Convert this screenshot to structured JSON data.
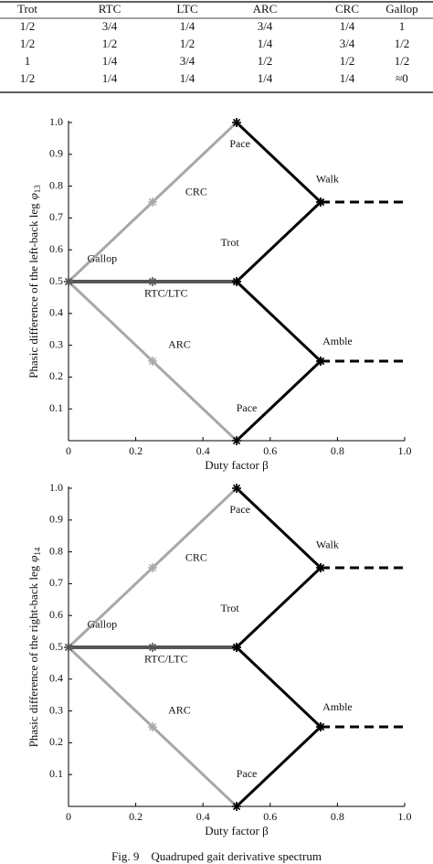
{
  "table": {
    "header": [
      "Trot",
      "RTC",
      "LTC",
      "ARC",
      "CRC",
      "Gallop"
    ],
    "rows": [
      [
        "1/2",
        "3/4",
        "1/4",
        "3/4",
        "1/4",
        "1"
      ],
      [
        "1/2",
        "1/2",
        "1/2",
        "1/4",
        "3/4",
        "1/2"
      ],
      [
        "1",
        "1/4",
        "3/4",
        "1/2",
        "1/2",
        "1/2"
      ],
      [
        "1/2",
        "1/4",
        "1/4",
        "1/4",
        "1/4",
        "≈0"
      ]
    ]
  },
  "chart_data": [
    {
      "type": "line",
      "xlabel": "Duty factor β",
      "ylabel": "Phasic difference of the left-back leg",
      "ylabel_symbol": "φ",
      "ylabel_subscript": "13",
      "xlim": [
        0,
        1
      ],
      "ylim": [
        0,
        1
      ],
      "xticks": [
        0,
        0.2,
        0.4,
        0.6,
        0.8,
        {
          "value": 1,
          "label": "1.0"
        }
      ],
      "yticks": [
        0.1,
        0.2,
        0.3,
        0.4,
        0.5,
        0.6,
        0.7,
        0.8,
        0.9,
        {
          "value": 1,
          "label": "1.0"
        }
      ],
      "series": [
        {
          "color": "#a8a8a8",
          "style": "solid",
          "markers": true,
          "x": [
            0,
            0.25,
            0.5
          ],
          "values": [
            0.5,
            0.75,
            1
          ]
        },
        {
          "color": "#a8a8a8",
          "style": "solid",
          "markers": true,
          "x": [
            0,
            0.25,
            0.5
          ],
          "values": [
            0.5,
            0.25,
            0
          ]
        },
        {
          "color": "#555555",
          "style": "thick",
          "markers": true,
          "x": [
            0,
            0.25,
            0.5
          ],
          "values": [
            0.5,
            0.5,
            0.5
          ]
        },
        {
          "color": "#000000",
          "style": "solid",
          "markers": true,
          "x": [
            0.5,
            0.75
          ],
          "values": [
            1,
            0.75
          ]
        },
        {
          "color": "#000000",
          "style": "solid",
          "markers": true,
          "x": [
            0.5,
            0.75
          ],
          "values": [
            0.5,
            0.75
          ]
        },
        {
          "color": "#000000",
          "style": "solid",
          "markers": true,
          "x": [
            0.5,
            0.75
          ],
          "values": [
            0.5,
            0.25
          ]
        },
        {
          "color": "#000000",
          "style": "solid",
          "markers": true,
          "x": [
            0.5,
            0.75
          ],
          "values": [
            0,
            0.25
          ]
        },
        {
          "color": "#000000",
          "style": "dashed",
          "markers": false,
          "x": [
            0.75,
            1
          ],
          "values": [
            0.75,
            0.75
          ]
        },
        {
          "color": "#000000",
          "style": "dashed",
          "markers": false,
          "x": [
            0.75,
            1
          ],
          "values": [
            0.25,
            0.25
          ]
        }
      ],
      "annotations": [
        "Pace",
        "CRC",
        "Walk",
        "Trot",
        "Gallop",
        "RTC/LTC",
        "ARC",
        "Amble",
        "Pace"
      ]
    },
    {
      "type": "line",
      "xlabel": "Duty factor β",
      "ylabel": "Phasic difference of the right-back leg",
      "ylabel_symbol": "φ",
      "ylabel_subscript": "14",
      "xlim": [
        0,
        1
      ],
      "ylim": [
        0,
        1
      ],
      "xticks": [
        0,
        0.2,
        0.4,
        0.6,
        0.8,
        {
          "value": 1,
          "label": "1.0"
        }
      ],
      "yticks": [
        0.1,
        0.2,
        0.3,
        0.4,
        0.5,
        0.6,
        0.7,
        0.8,
        0.9,
        {
          "value": 1,
          "label": "1.0"
        }
      ],
      "series": [
        {
          "color": "#a8a8a8",
          "style": "solid",
          "markers": true,
          "x": [
            0,
            0.25,
            0.5
          ],
          "values": [
            0.5,
            0.75,
            1
          ]
        },
        {
          "color": "#a8a8a8",
          "style": "solid",
          "markers": true,
          "x": [
            0,
            0.25,
            0.5
          ],
          "values": [
            0.5,
            0.25,
            0
          ]
        },
        {
          "color": "#555555",
          "style": "thick",
          "markers": true,
          "x": [
            0,
            0.25,
            0.5
          ],
          "values": [
            0.5,
            0.5,
            0.5
          ]
        },
        {
          "color": "#000000",
          "style": "solid",
          "markers": true,
          "x": [
            0.5,
            0.75
          ],
          "values": [
            1,
            0.75
          ]
        },
        {
          "color": "#000000",
          "style": "solid",
          "markers": true,
          "x": [
            0.5,
            0.75
          ],
          "values": [
            0.5,
            0.75
          ]
        },
        {
          "color": "#000000",
          "style": "solid",
          "markers": true,
          "x": [
            0.5,
            0.75
          ],
          "values": [
            0.5,
            0.25
          ]
        },
        {
          "color": "#000000",
          "style": "solid",
          "markers": true,
          "x": [
            0.5,
            0.75
          ],
          "values": [
            0,
            0.25
          ]
        },
        {
          "color": "#000000",
          "style": "dashed",
          "markers": false,
          "x": [
            0.75,
            1
          ],
          "values": [
            0.75,
            0.75
          ]
        },
        {
          "color": "#000000",
          "style": "dashed",
          "markers": false,
          "x": [
            0.75,
            1
          ],
          "values": [
            0.25,
            0.25
          ]
        }
      ],
      "annotations": [
        "Pace",
        "CRC",
        "Walk",
        "Trot",
        "Gallop",
        "RTC/LTC",
        "ARC",
        "Amble",
        "Pace"
      ]
    }
  ],
  "caption": "Fig. 9    Quadruped gait derivative spectrum"
}
